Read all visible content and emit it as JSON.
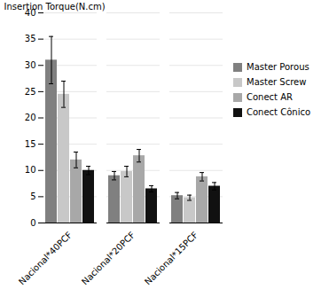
{
  "chart_data": {
    "type": "bar",
    "categories": [
      "Nacional*40PCF",
      "Nacional*20PCF",
      "Nacional*15PCF"
    ],
    "series": [
      {
        "name": "Master Porous",
        "color": "#808080",
        "values": [
          31.0,
          9.0,
          5.2
        ],
        "errors": [
          4.5,
          0.8,
          0.6
        ]
      },
      {
        "name": "Master Screw",
        "color": "#c8c8c8",
        "values": [
          24.5,
          9.8,
          4.8
        ],
        "errors": [
          2.5,
          1.0,
          0.5
        ]
      },
      {
        "name": "Conect AR",
        "color": "#a8a8a8",
        "values": [
          12.0,
          12.8,
          8.8
        ],
        "errors": [
          1.5,
          1.2,
          0.8
        ]
      },
      {
        "name": "Conect Cônico",
        "color": "#111111",
        "values": [
          10.0,
          6.5,
          7.0
        ],
        "errors": [
          0.8,
          0.6,
          0.7
        ]
      }
    ],
    "ylabel": "Insertion Torque(N.cm)",
    "ylim": [
      0,
      40
    ],
    "yticks": [
      0,
      5,
      10,
      15,
      20,
      25,
      30,
      35,
      40
    ],
    "grid": true,
    "legend": "right"
  }
}
